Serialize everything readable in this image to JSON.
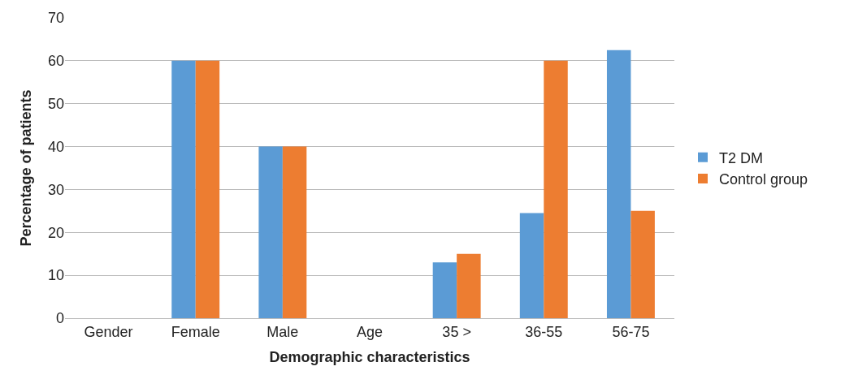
{
  "chart_data": {
    "type": "bar",
    "xlabel": "Demographic characteristics",
    "ylabel": "Percentage of patients",
    "categories": [
      "Gender",
      "Female",
      "Male",
      "Age",
      "35 >",
      "36-55",
      "56-75"
    ],
    "series": [
      {
        "name": "T2 DM",
        "color": "#5b9bd5",
        "values": [
          null,
          60,
          40,
          null,
          13,
          24.5,
          62.5
        ]
      },
      {
        "name": "Control group",
        "color": "#ed7d31",
        "values": [
          null,
          60,
          40,
          null,
          15,
          60,
          25
        ]
      }
    ],
    "ylim": [
      0,
      70
    ],
    "yticks": [
      0,
      10,
      20,
      30,
      40,
      50,
      60,
      70
    ],
    "grid": "y",
    "legend": "right"
  }
}
